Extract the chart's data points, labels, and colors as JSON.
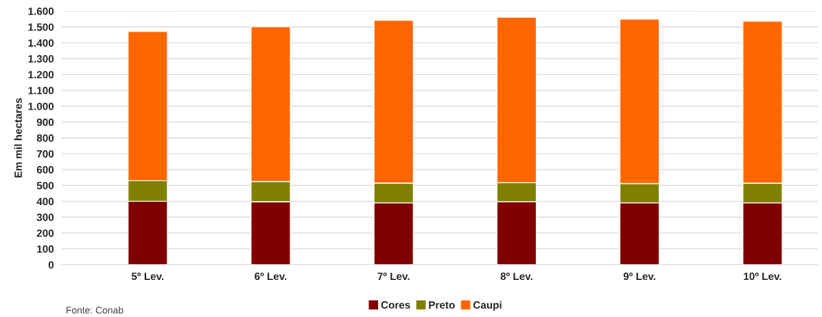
{
  "chart_data": {
    "type": "bar",
    "stacked": true,
    "ylabel": "Em mil hectares",
    "categories": [
      "5º Lev.",
      "6º Lev.",
      "7º Lev.",
      "8º Lev.",
      "9º Lev.",
      "10º Lev."
    ],
    "series": [
      {
        "name": "Cores",
        "color": "#800000",
        "values": [
          400,
          397,
          390,
          398,
          390,
          390
        ]
      },
      {
        "name": "Preto",
        "color": "#808000",
        "values": [
          130,
          128,
          125,
          120,
          122,
          124
        ]
      },
      {
        "name": "Caupi",
        "color": "#ff6600",
        "values": [
          942,
          977,
          1027,
          1044,
          1038,
          1023
        ]
      }
    ],
    "ylim": [
      0,
      1600
    ],
    "yticks": [
      0,
      100,
      200,
      300,
      400,
      500,
      600,
      700,
      800,
      900,
      {
        "value": 1000,
        "label": "1.000"
      },
      {
        "value": 1100,
        "label": "1.100"
      },
      {
        "value": 1200,
        "label": "1.200"
      },
      {
        "value": 1300,
        "label": "1.300"
      },
      {
        "value": 1400,
        "label": "1.400"
      },
      {
        "value": 1500,
        "label": "1.500"
      },
      {
        "value": 1600,
        "label": "1.600"
      }
    ],
    "grid": "y",
    "legend": "bottom",
    "annotations": [
      "Fonte: Conab"
    ]
  }
}
